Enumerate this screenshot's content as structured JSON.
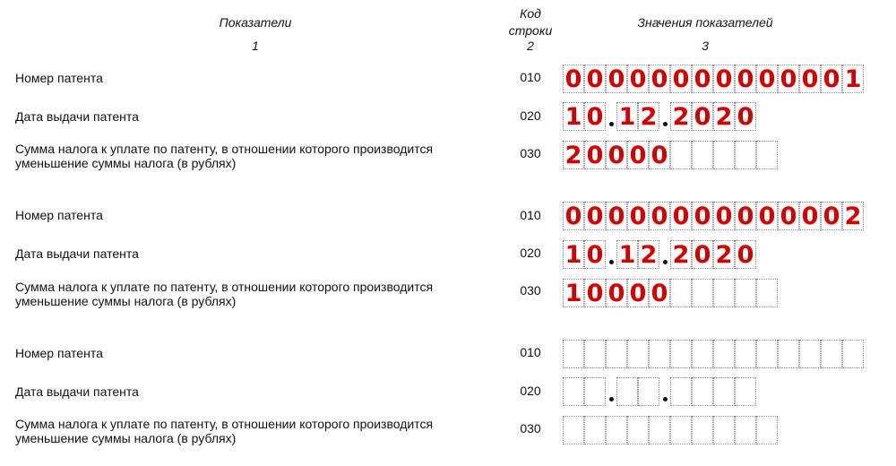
{
  "header": {
    "col1_title": "Показатели",
    "col1_num": "1",
    "col2_title_line1": "Код",
    "col2_title_line2": "строки",
    "col2_num": "2",
    "col3_title": "Значения показателей",
    "col3_num": "3"
  },
  "labels": {
    "patent_number": "Номер патента",
    "issue_date": "Дата выдачи патента",
    "tax_amount_line1": "Сумма налога к уплате по патенту, в отношении которого производится",
    "tax_amount_line2": "уменьшение суммы налога (в рублях)"
  },
  "codes": {
    "number": "010",
    "date": "020",
    "amount": "030"
  },
  "blocks": [
    {
      "patent_number": "00000000000001",
      "date_day": "10",
      "date_month": "12",
      "date_year": "2020",
      "amount": "20000"
    },
    {
      "patent_number": "00000000000002",
      "date_day": "10",
      "date_month": "12",
      "date_year": "2020",
      "amount": "10000"
    },
    {
      "patent_number": "",
      "date_day": "",
      "date_month": "",
      "date_year": "",
      "amount": ""
    }
  ],
  "grid": {
    "number_cells": 14,
    "amount_cells": 10
  },
  "colors": {
    "value_text": "#d40000",
    "cell_border": "#8a8a8a"
  }
}
